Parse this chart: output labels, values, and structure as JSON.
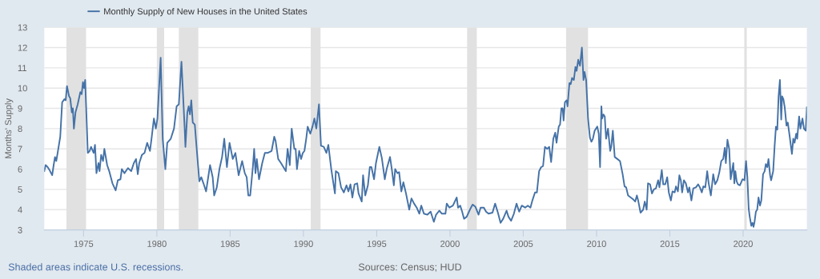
{
  "chart_data": {
    "type": "line",
    "ylabel": "Months' Supply",
    "legend": "top left",
    "grid": "y",
    "xlim": [
      1972.32,
      2024.35
    ],
    "ylim": [
      3,
      13
    ],
    "xticks": [
      1975,
      1980,
      1985,
      1990,
      1995,
      2000,
      2005,
      2010,
      2015,
      2020
    ],
    "yticks": [
      3,
      4,
      5,
      6,
      7,
      8,
      9,
      10,
      11,
      12,
      13
    ],
    "bands": [
      {
        "axis": "x",
        "from": 1973.83,
        "to": 1975.17,
        "color": "#e1e1e1"
      },
      {
        "axis": "x",
        "from": 1980.0,
        "to": 1980.5,
        "color": "#e1e1e1"
      },
      {
        "axis": "x",
        "from": 1981.5,
        "to": 1982.83,
        "color": "#e1e1e1"
      },
      {
        "axis": "x",
        "from": 1990.5,
        "to": 1991.17,
        "color": "#e1e1e1"
      },
      {
        "axis": "x",
        "from": 2001.17,
        "to": 2001.83,
        "color": "#e1e1e1"
      },
      {
        "axis": "x",
        "from": 2007.92,
        "to": 2009.42,
        "color": "#e1e1e1"
      },
      {
        "axis": "x",
        "from": 2020.08,
        "to": 2020.25,
        "color": "#e1e1e1"
      }
    ],
    "annotations": [
      "Shaded areas indicate U.S. recessions.",
      "Sources: Census; HUD"
    ],
    "series": [
      {
        "name": "Monthly Supply of New Houses in the United States",
        "color": "#4572a7",
        "x": [
          1972.32,
          1972.41,
          1972.55,
          1972.68,
          1972.86,
          1972.96,
          1973.05,
          1973.14,
          1973.23,
          1973.41,
          1973.54,
          1973.69,
          1973.78,
          1973.87,
          1974.01,
          1974.09,
          1974.2,
          1974.27,
          1974.34,
          1974.45,
          1974.6,
          1974.78,
          1974.87,
          1974.96,
          1975.04,
          1975.11,
          1975.29,
          1975.42,
          1975.51,
          1975.69,
          1975.78,
          1975.88,
          1976.02,
          1976.09,
          1976.2,
          1976.33,
          1976.42,
          1976.61,
          1976.75,
          1976.97,
          1977.19,
          1977.34,
          1977.52,
          1977.61,
          1977.79,
          1978.03,
          1978.25,
          1978.43,
          1978.58,
          1978.7,
          1978.8,
          1978.98,
          1979.16,
          1979.34,
          1979.53,
          1979.62,
          1979.8,
          1979.93,
          1980.04,
          1980.26,
          1980.4,
          1980.58,
          1980.71,
          1980.95,
          1981.17,
          1981.35,
          1981.5,
          1981.68,
          1981.9,
          1981.95,
          1982.08,
          1982.17,
          1982.26,
          1982.35,
          1982.45,
          1982.59,
          1982.72,
          1982.9,
          1983.03,
          1983.18,
          1983.36,
          1983.63,
          1983.81,
          1983.91,
          1984.09,
          1984.27,
          1984.45,
          1984.6,
          1984.78,
          1984.96,
          1985.18,
          1985.36,
          1985.58,
          1985.82,
          1986.0,
          1986.13,
          1986.24,
          1986.37,
          1986.55,
          1986.64,
          1986.73,
          1986.82,
          1986.97,
          1987.19,
          1987.37,
          1987.55,
          1987.83,
          1988.01,
          1988.1,
          1988.28,
          1988.47,
          1988.8,
          1988.92,
          1989.07,
          1989.2,
          1989.38,
          1989.47,
          1989.56,
          1989.71,
          1989.84,
          1989.96,
          1990.07,
          1990.2,
          1990.29,
          1990.47,
          1990.62,
          1990.75,
          1990.88,
          1991.06,
          1991.2,
          1991.39,
          1991.57,
          1991.7,
          1991.9,
          1992.15,
          1992.21,
          1992.39,
          1992.57,
          1992.76,
          1992.94,
          1993.07,
          1993.21,
          1993.34,
          1993.49,
          1993.67,
          1993.76,
          1993.98,
          1994.07,
          1994.22,
          1994.4,
          1994.53,
          1994.64,
          1994.82,
          1994.95,
          1995.18,
          1995.35,
          1995.55,
          1995.68,
          1995.91,
          1996.04,
          1996.17,
          1996.26,
          1996.41,
          1996.53,
          1996.68,
          1996.82,
          1997.0,
          1997.22,
          1997.37,
          1997.55,
          1997.73,
          1997.91,
          1998.04,
          1998.22,
          1998.46,
          1998.68,
          1998.9,
          1999.05,
          1999.27,
          1999.45,
          1999.69,
          1999.78,
          1999.96,
          2000.2,
          2000.46,
          2000.55,
          2000.7,
          2000.83,
          2000.96,
          2001.14,
          2001.36,
          2001.54,
          2001.73,
          2001.95,
          2002.09,
          2002.31,
          2002.46,
          2002.63,
          2002.9,
          2003.08,
          2003.27,
          2003.45,
          2003.63,
          2003.86,
          2003.99,
          2004.17,
          2004.36,
          2004.54,
          2004.72,
          2004.9,
          2005.13,
          2005.31,
          2005.49,
          2005.62,
          2005.8,
          2005.93,
          2006.08,
          2006.22,
          2006.35,
          2006.48,
          2006.63,
          2006.77,
          2006.9,
          2007.05,
          2007.18,
          2007.27,
          2007.42,
          2007.51,
          2007.6,
          2007.69,
          2007.75,
          2007.84,
          2007.96,
          2008.02,
          2008.15,
          2008.24,
          2008.33,
          2008.45,
          2008.56,
          2008.64,
          2008.75,
          2008.87,
          2009.0,
          2009.11,
          2009.18,
          2009.29,
          2009.42,
          2009.55,
          2009.65,
          2009.75,
          2009.87,
          2010.05,
          2010.15,
          2010.24,
          2010.33,
          2010.38,
          2010.47,
          2010.56,
          2010.65,
          2010.78,
          2010.93,
          2011.0,
          2011.11,
          2011.24,
          2011.42,
          2011.6,
          2011.78,
          2011.91,
          2012.02,
          2012.15,
          2012.33,
          2012.51,
          2012.64,
          2012.75,
          2012.84,
          2013.0,
          2013.18,
          2013.29,
          2013.42,
          2013.51,
          2013.65,
          2013.78,
          2013.91,
          2014.05,
          2014.2,
          2014.29,
          2014.45,
          2014.55,
          2014.69,
          2014.82,
          2014.93,
          2015.07,
          2015.18,
          2015.33,
          2015.42,
          2015.55,
          2015.65,
          2015.75,
          2015.84,
          2015.96,
          2016.09,
          2016.24,
          2016.33,
          2016.47,
          2016.6,
          2016.78,
          2016.93,
          2017.05,
          2017.18,
          2017.29,
          2017.42,
          2017.55,
          2017.65,
          2017.8,
          2017.96,
          2018.09,
          2018.24,
          2018.38,
          2018.51,
          2018.64,
          2018.75,
          2018.82,
          2018.93,
          2019.05,
          2019.15,
          2019.24,
          2019.33,
          2019.4,
          2019.47,
          2019.56,
          2019.65,
          2019.78,
          2019.96,
          2020.09,
          2020.2,
          2020.29,
          2020.38,
          2020.45,
          2020.56,
          2020.64,
          2020.71,
          2020.78,
          2020.87,
          2020.96,
          2021.05,
          2021.15,
          2021.24,
          2021.36,
          2021.47,
          2021.55,
          2021.65,
          2021.73,
          2021.84,
          2021.91,
          2022.05,
          2022.15,
          2022.24,
          2022.33,
          2022.42,
          2022.51,
          2022.6,
          2022.66,
          2022.75,
          2022.84,
          2022.96,
          2023.05,
          2023.18,
          2023.33,
          2023.42,
          2023.51,
          2023.62,
          2023.69,
          2023.82,
          2023.91,
          2024.05,
          2024.15,
          2024.27,
          2024.35
        ],
        "values": [
          5.9,
          6.2,
          6.1,
          5.95,
          5.7,
          6.2,
          6.6,
          6.4,
          6.8,
          7.6,
          9.3,
          9.45,
          9.4,
          10.1,
          9.6,
          9.5,
          8.8,
          9.0,
          8.0,
          8.8,
          9.2,
          9.8,
          9.7,
          10.3,
          10.0,
          10.4,
          6.8,
          6.9,
          7.1,
          6.8,
          7.2,
          5.8,
          6.3,
          5.9,
          6.7,
          6.4,
          7.0,
          6.2,
          5.9,
          5.3,
          4.95,
          5.45,
          5.5,
          6.0,
          5.8,
          6.05,
          5.9,
          6.3,
          6.5,
          5.75,
          6.3,
          6.7,
          6.8,
          7.3,
          6.9,
          7.4,
          8.5,
          8.0,
          8.5,
          11.5,
          7.5,
          6.0,
          7.3,
          7.5,
          8.0,
          9.1,
          9.2,
          11.3,
          8.0,
          7.1,
          8.8,
          9.1,
          8.7,
          9.4,
          8.3,
          8.2,
          7.0,
          5.4,
          5.6,
          5.3,
          4.9,
          6.2,
          5.6,
          4.7,
          5.1,
          6.0,
          6.6,
          7.5,
          6.1,
          7.3,
          6.5,
          6.8,
          5.7,
          6.4,
          5.8,
          5.6,
          4.7,
          4.7,
          6.1,
          7.0,
          5.8,
          6.5,
          5.5,
          6.3,
          6.8,
          6.8,
          6.9,
          7.6,
          7.4,
          6.5,
          6.3,
          5.9,
          7.0,
          6.2,
          8.0,
          7.0,
          7.0,
          6.0,
          6.9,
          6.5,
          6.8,
          6.9,
          7.55,
          8.1,
          7.75,
          8.1,
          8.5,
          8.0,
          9.2,
          7.15,
          7.1,
          6.8,
          7.2,
          6.0,
          4.8,
          5.9,
          5.8,
          5.1,
          4.85,
          5.2,
          4.9,
          5.25,
          4.6,
          5.25,
          5.3,
          4.8,
          4.4,
          5.7,
          4.7,
          5.2,
          6.1,
          6.1,
          5.5,
          6.3,
          7.1,
          6.55,
          5.5,
          6.0,
          6.6,
          5.95,
          5.2,
          6.0,
          5.8,
          5.85,
          4.9,
          5.35,
          4.8,
          4.0,
          4.55,
          4.3,
          4.1,
          3.8,
          4.2,
          3.8,
          3.75,
          3.9,
          3.4,
          3.75,
          3.95,
          3.8,
          3.8,
          4.3,
          4.1,
          4.2,
          4.6,
          4.1,
          4.2,
          3.9,
          3.55,
          3.65,
          4.0,
          4.25,
          4.15,
          3.75,
          4.1,
          4.1,
          3.9,
          3.8,
          3.85,
          4.3,
          3.85,
          3.35,
          3.55,
          3.95,
          3.65,
          3.45,
          3.8,
          4.3,
          3.9,
          4.2,
          4.1,
          4.2,
          4.1,
          4.45,
          4.85,
          4.85,
          5.9,
          6.1,
          6.15,
          7.1,
          7.0,
          7.1,
          6.35,
          7.5,
          7.8,
          7.3,
          8.1,
          8.2,
          9.0,
          9.0,
          8.4,
          9.3,
          9.4,
          9.1,
          10.25,
          10.2,
          10.5,
          10.4,
          11.05,
          10.85,
          11.4,
          11.1,
          12.0,
          10.4,
          10.8,
          10.4,
          8.5,
          7.55,
          7.35,
          7.5,
          7.9,
          8.1,
          7.75,
          6.1,
          9.1,
          8.5,
          8.7,
          8.6,
          7.5,
          8.0,
          6.9,
          7.1,
          7.9,
          6.6,
          6.5,
          6.4,
          5.75,
          5.15,
          5.1,
          4.7,
          4.6,
          4.5,
          4.4,
          4.7,
          4.45,
          3.85,
          4.0,
          4.4,
          4.0,
          5.3,
          5.25,
          4.8,
          5.0,
          5.05,
          5.45,
          5.1,
          5.95,
          5.25,
          5.25,
          5.6,
          4.85,
          4.45,
          4.9,
          4.85,
          5.15,
          4.9,
          5.7,
          5.45,
          4.85,
          5.45,
          5.3,
          4.85,
          5.1,
          4.45,
          5.05,
          5.1,
          5.25,
          5.1,
          4.85,
          5.15,
          5.1,
          5.9,
          5.3,
          4.7,
          5.75,
          5.25,
          5.45,
          5.85,
          6.4,
          6.5,
          7.05,
          6.3,
          7.45,
          7.0,
          5.5,
          5.9,
          6.3,
          5.3,
          5.9,
          5.4,
          5.25,
          5.2,
          5.5,
          5.45,
          6.4,
          5.6,
          4.05,
          3.65,
          3.2,
          3.35,
          3.15,
          3.4,
          3.9,
          4.0,
          4.6,
          4.2,
          4.45,
          5.75,
          5.9,
          6.25,
          6.1,
          6.5,
          5.7,
          5.45,
          5.9,
          7.15,
          8.1,
          7.95,
          9.6,
          10.4,
          8.45,
          9.6,
          9.45,
          9.05,
          8.15,
          8.3,
          7.6,
          6.75,
          7.5,
          7.3,
          7.75,
          7.5,
          8.6,
          8.0,
          8.5,
          8.0,
          7.9,
          9.05
        ]
      }
    ]
  }
}
